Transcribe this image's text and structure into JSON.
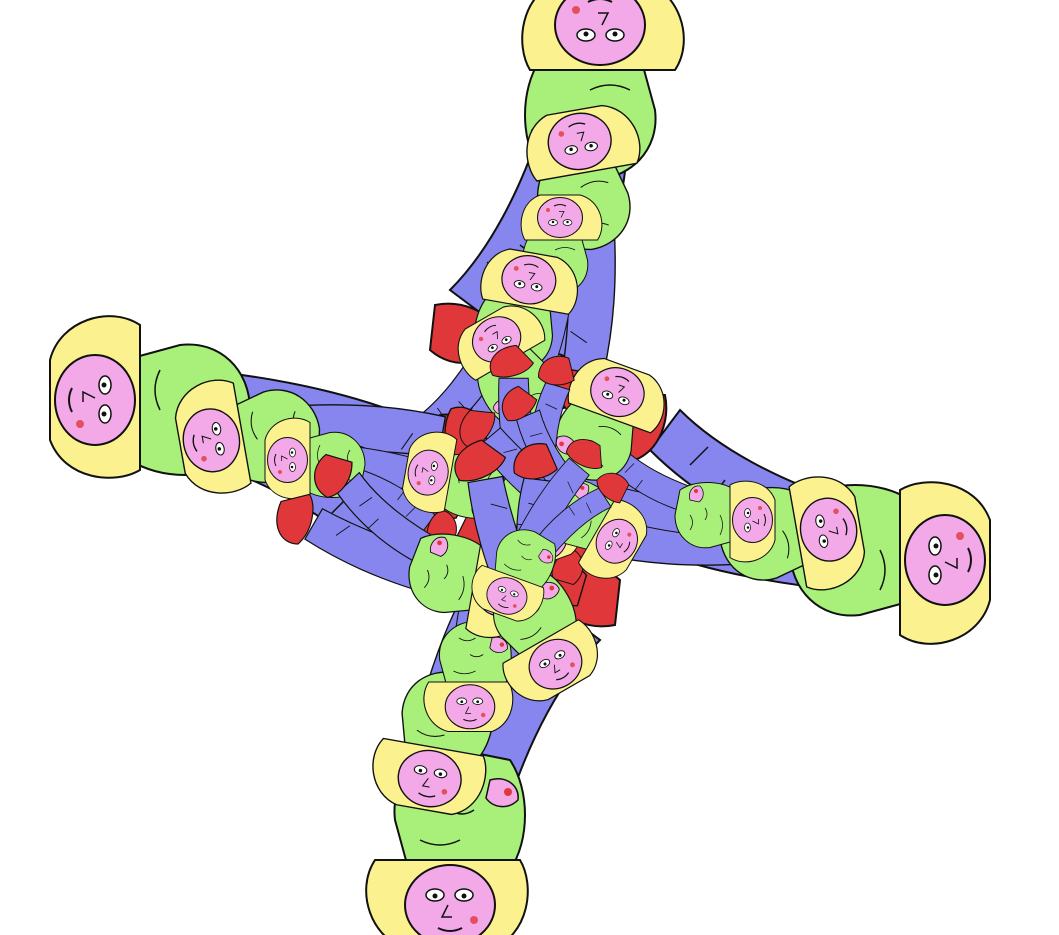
{
  "artwork": {
    "kind": "kaleidoscopic-illustration",
    "palette": {
      "background": "#ffffff",
      "hair": "#fbf28f",
      "skin": "#f3a8e8",
      "shirt": "#a8f07a",
      "jeans": "#8686ee",
      "jeans_dark": "#6464d6",
      "shoes": "#e0383a",
      "outline": "#111111"
    }
  }
}
